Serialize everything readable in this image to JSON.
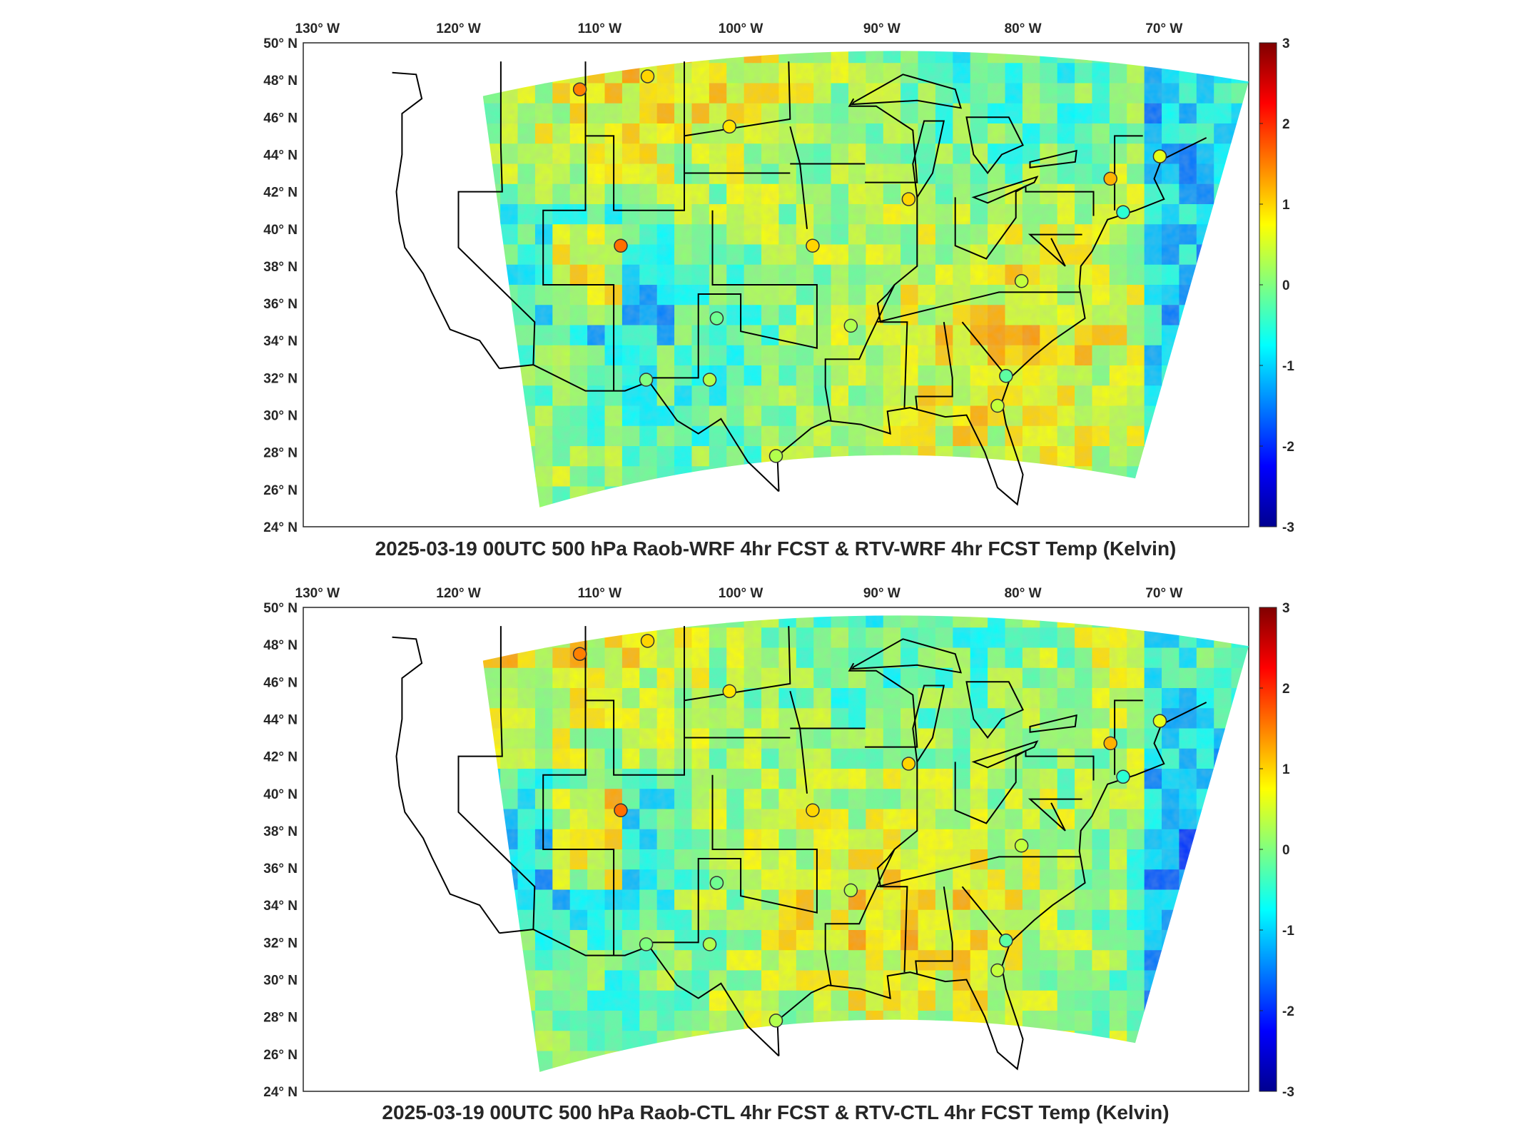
{
  "panels": [
    {
      "title": "2025-03-19 00UTC 500 hPa Raob-WRF 4hr FCST & RTV-WRF 4hr FCST Temp (Kelvin)"
    },
    {
      "title": "2025-03-19 00UTC 500 hPa Raob-CTL 4hr FCST & RTV-CTL 4hr FCST Temp (Kelvin)"
    }
  ],
  "lon_ticks": [
    {
      "value": -130,
      "label": "130° W"
    },
    {
      "value": -120,
      "label": "120° W"
    },
    {
      "value": -110,
      "label": "110° W"
    },
    {
      "value": -100,
      "label": "100° W"
    },
    {
      "value": -90,
      "label": "90° W"
    },
    {
      "value": -80,
      "label": "80° W"
    },
    {
      "value": -70,
      "label": "70° W"
    }
  ],
  "lat_ticks": [
    {
      "value": 50,
      "label": "50° N"
    },
    {
      "value": 48,
      "label": "48° N"
    },
    {
      "value": 46,
      "label": "46° N"
    },
    {
      "value": 44,
      "label": "44° N"
    },
    {
      "value": 42,
      "label": "42° N"
    },
    {
      "value": 40,
      "label": "40° N"
    },
    {
      "value": 38,
      "label": "38° N"
    },
    {
      "value": 36,
      "label": "36° N"
    },
    {
      "value": 34,
      "label": "34° N"
    },
    {
      "value": 32,
      "label": "32° N"
    },
    {
      "value": 30,
      "label": "30° N"
    },
    {
      "value": 28,
      "label": "28° N"
    },
    {
      "value": 26,
      "label": "26° N"
    },
    {
      "value": 24,
      "label": "24° N"
    }
  ],
  "colorbar": {
    "colormap": "jet",
    "range": [
      -3,
      3
    ],
    "ticks": [
      "3",
      "2",
      "1",
      "0",
      "-1",
      "-2",
      "-3"
    ]
  },
  "map_extent": {
    "lon": [
      -131,
      -64
    ],
    "lat": [
      24,
      50
    ]
  },
  "colors": {
    "frame": "#262626",
    "boundaries": "#000000",
    "background": "#ffffff"
  }
}
